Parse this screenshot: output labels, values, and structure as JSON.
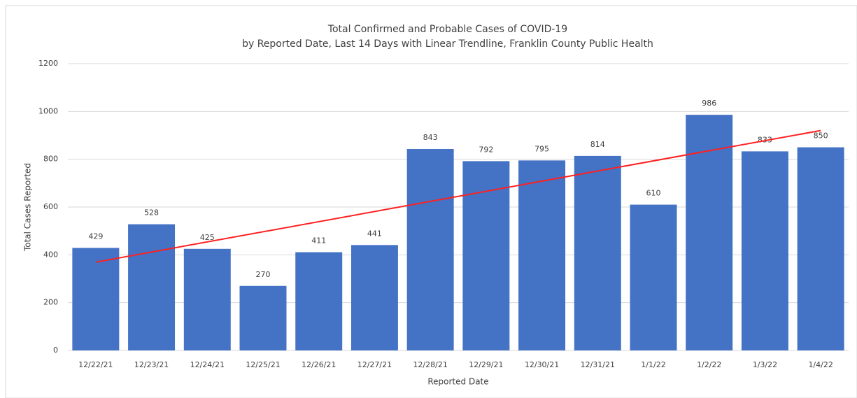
{
  "chart_data": {
    "type": "bar",
    "title": "Total Confirmed and Probable Cases of COVID-19",
    "subtitle": "by Reported Date, Last 14 Days with Linear Trendline, Franklin County Public Health",
    "x_label": "Reported Date",
    "y_label": "Total Cases Reported",
    "categories": [
      "12/22/21",
      "12/23/21",
      "12/24/21",
      "12/25/21",
      "12/26/21",
      "12/27/21",
      "12/28/21",
      "12/29/21",
      "12/30/21",
      "12/31/21",
      "1/1/22",
      "1/2/22",
      "1/3/22",
      "1/4/22"
    ],
    "values": [
      429,
      528,
      425,
      270,
      411,
      441,
      843,
      792,
      795,
      814,
      610,
      986,
      833,
      850
    ],
    "color": "#4472c4",
    "trendline": "linear",
    "trendline_color": "#ff2020",
    "ylim": [
      0,
      1200
    ],
    "yticks": [
      0,
      200,
      400,
      600,
      800,
      1000,
      1200
    ],
    "grid": true
  }
}
